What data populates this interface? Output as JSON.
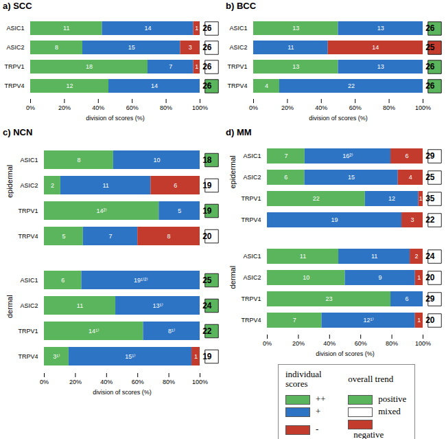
{
  "chart_data": [
    {
      "type": "bar",
      "title": "a) SCC",
      "orientation": "horizontal",
      "stacked": true,
      "data_labels": true,
      "xlabel": "division of scores (%)",
      "xlim": [
        0,
        100
      ],
      "xticks": [
        {
          "value": 0,
          "label": "0%"
        },
        {
          "value": 20,
          "label": "20%"
        },
        {
          "value": 40,
          "label": "40%"
        },
        {
          "value": 60,
          "label": "60%"
        },
        {
          "value": 80,
          "label": "80%"
        },
        {
          "value": 100,
          "label": "100%"
        }
      ],
      "groups": [
        {
          "categories": [
            "ASIC1",
            "ASIC2",
            "TRPV1",
            "TRPV4"
          ],
          "series": [
            {
              "name": "++",
              "color": "#5bb55c",
              "values": [
                11,
                8,
                18,
                12
              ]
            },
            {
              "name": "+",
              "color": "#2e74c5",
              "values": [
                14,
                15,
                7,
                14
              ]
            },
            {
              "name": "-",
              "color": "#c23b2c",
              "values": [
                1,
                3,
                1,
                0
              ]
            }
          ],
          "totals": [
            26,
            26,
            26,
            26
          ],
          "overall_trend": [
            "mixed",
            "mixed",
            "mixed",
            "positive"
          ]
        }
      ]
    },
    {
      "type": "bar",
      "title": "b) BCC",
      "orientation": "horizontal",
      "stacked": true,
      "data_labels": true,
      "xlabel": "division of scores (%)",
      "xlim": [
        0,
        100
      ],
      "xticks": [
        {
          "value": 0,
          "label": "0%"
        },
        {
          "value": 20,
          "label": "20%"
        },
        {
          "value": 40,
          "label": "40%"
        },
        {
          "value": 60,
          "label": "60%"
        },
        {
          "value": 80,
          "label": "80%"
        },
        {
          "value": 100,
          "label": "100%"
        }
      ],
      "groups": [
        {
          "categories": [
            "ASIC1",
            "ASIC2",
            "TRPV1",
            "TRPV4"
          ],
          "series": [
            {
              "name": "++",
              "color": "#5bb55c",
              "values": [
                13,
                0,
                13,
                4
              ]
            },
            {
              "name": "+",
              "color": "#2e74c5",
              "values": [
                13,
                11,
                13,
                22
              ]
            },
            {
              "name": "-",
              "color": "#c23b2c",
              "values": [
                0,
                14,
                0,
                0
              ]
            }
          ],
          "totals": [
            26,
            25,
            26,
            26
          ],
          "overall_trend": [
            "positive",
            "negative",
            "positive",
            "positive"
          ]
        }
      ]
    },
    {
      "type": "bar",
      "title": "c) NCN",
      "orientation": "horizontal",
      "stacked": true,
      "data_labels": true,
      "xlabel": "division of scores (%)",
      "xlim": [
        0,
        100
      ],
      "xticks": [
        {
          "value": 0,
          "label": "0%"
        },
        {
          "value": 20,
          "label": "20%"
        },
        {
          "value": 40,
          "label": "40%"
        },
        {
          "value": 60,
          "label": "60%"
        },
        {
          "value": 80,
          "label": "80%"
        },
        {
          "value": 100,
          "label": "100%"
        }
      ],
      "groups": [
        {
          "name": "epidermal",
          "categories": [
            "ASIC1",
            "ASIC2",
            "TRPV1",
            "TRPV4"
          ],
          "series": [
            {
              "name": "++",
              "color": "#5bb55c",
              "values": [
                8,
                2,
                14,
                5
              ],
              "notes": [
                null,
                null,
                "²⁾",
                null
              ]
            },
            {
              "name": "+",
              "color": "#2e74c5",
              "values": [
                10,
                11,
                5,
                7
              ]
            },
            {
              "name": "-",
              "color": "#c23b2c",
              "values": [
                0,
                6,
                0,
                8
              ]
            }
          ],
          "totals": [
            18,
            19,
            19,
            20
          ],
          "overall_trend": [
            "positive",
            "mixed",
            "positive",
            "mixed"
          ]
        },
        {
          "name": "dermal",
          "categories": [
            "ASIC1",
            "ASIC2",
            "TRPV1",
            "TRPV4"
          ],
          "series": [
            {
              "name": "++",
              "color": "#5bb55c",
              "values": [
                6,
                11,
                14,
                3
              ],
              "notes": [
                null,
                null,
                "¹⁾",
                "¹⁾"
              ]
            },
            {
              "name": "+",
              "color": "#2e74c5",
              "values": [
                19,
                13,
                8,
                15
              ],
              "notes": [
                "¹⁾²⁾",
                "¹⁾",
                "¹⁾",
                "¹⁾"
              ]
            },
            {
              "name": "-",
              "color": "#c23b2c",
              "values": [
                0,
                0,
                0,
                1
              ]
            }
          ],
          "totals": [
            25,
            24,
            22,
            19
          ],
          "overall_trend": [
            "positive",
            "positive",
            "positive",
            "mixed"
          ]
        }
      ]
    },
    {
      "type": "bar",
      "title": "d) MM",
      "orientation": "horizontal",
      "stacked": true,
      "data_labels": true,
      "xlabel": "division of scores (%)",
      "xlim": [
        0,
        100
      ],
      "xticks": [
        {
          "value": 0,
          "label": "0%"
        },
        {
          "value": 20,
          "label": "20%"
        },
        {
          "value": 40,
          "label": "40%"
        },
        {
          "value": 60,
          "label": "60%"
        },
        {
          "value": 80,
          "label": "80%"
        },
        {
          "value": 100,
          "label": "100%"
        }
      ],
      "groups": [
        {
          "name": "epidermal",
          "categories": [
            "ASIC1",
            "ASIC2",
            "TRPV1",
            "TRPV4"
          ],
          "series": [
            {
              "name": "++",
              "color": "#5bb55c",
              "values": [
                7,
                6,
                22,
                0
              ]
            },
            {
              "name": "+",
              "color": "#2e74c5",
              "values": [
                16,
                15,
                12,
                19
              ],
              "notes": [
                "²⁾",
                null,
                null,
                null
              ]
            },
            {
              "name": "-",
              "color": "#c23b2c",
              "values": [
                6,
                4,
                1,
                3
              ]
            }
          ],
          "totals": [
            29,
            25,
            35,
            22
          ],
          "overall_trend": [
            "mixed",
            "mixed",
            "mixed",
            "mixed"
          ]
        },
        {
          "name": "dermal",
          "categories": [
            "ASIC1",
            "ASIC2",
            "TRPV1",
            "TRPV4"
          ],
          "series": [
            {
              "name": "++",
              "color": "#5bb55c",
              "values": [
                11,
                10,
                23,
                7
              ]
            },
            {
              "name": "+",
              "color": "#2e74c5",
              "values": [
                11,
                9,
                6,
                12
              ],
              "notes": [
                null,
                null,
                null,
                "¹⁾"
              ]
            },
            {
              "name": "-",
              "color": "#c23b2c",
              "values": [
                2,
                1,
                0,
                1
              ]
            }
          ],
          "totals": [
            24,
            20,
            29,
            20
          ],
          "overall_trend": [
            "mixed",
            "mixed",
            "mixed",
            "mixed"
          ]
        }
      ]
    }
  ],
  "legend_panel": {
    "individual_scores_title": "individual scores",
    "overall_trend_title": "overall trend",
    "trends": [
      {
        "name": "positive",
        "color": "#5bb55c"
      },
      {
        "name": "mixed",
        "color": "#ffffff"
      },
      {
        "name": "negative",
        "color": "#c23b2c"
      }
    ]
  }
}
